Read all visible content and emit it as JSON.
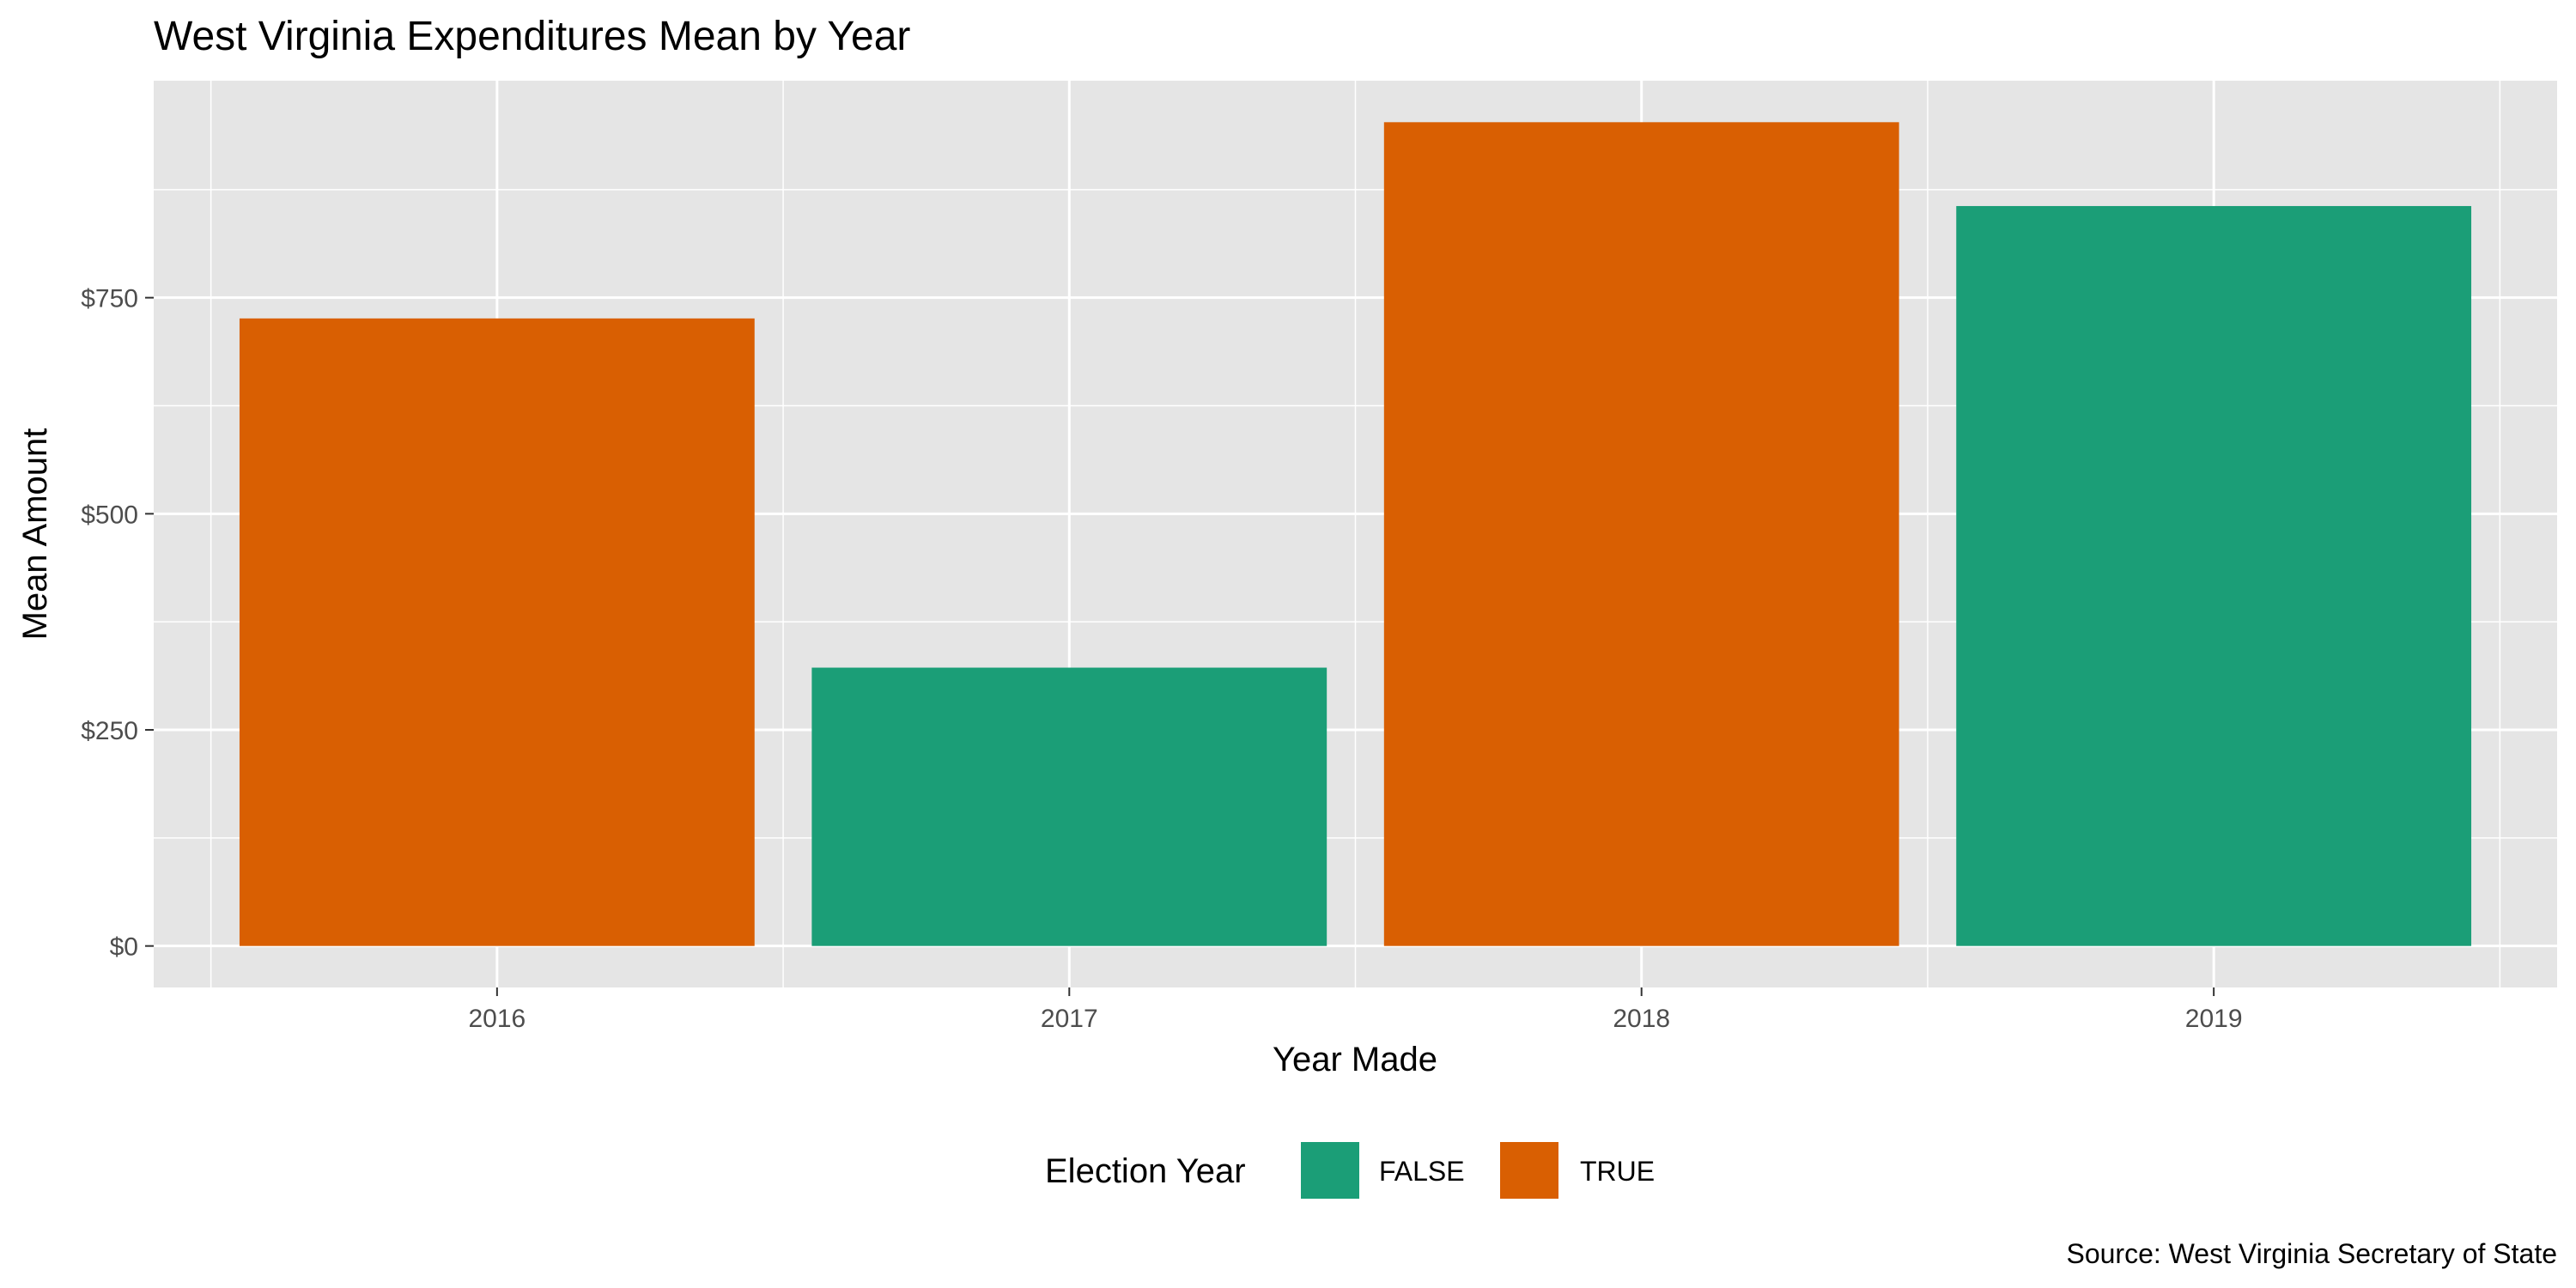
{
  "chart_data": {
    "type": "bar",
    "title": "West Virginia Expenditures Mean by Year",
    "xlabel": "Year Made",
    "ylabel": "Mean Amount",
    "categories": [
      "2016",
      "2017",
      "2018",
      "2019"
    ],
    "values": [
      726,
      322,
      953,
      856
    ],
    "election_year": [
      "TRUE",
      "FALSE",
      "TRUE",
      "FALSE"
    ],
    "yticks": [
      0,
      250,
      500,
      750
    ],
    "ytick_labels": [
      "$0",
      "$250",
      "$500",
      "$750"
    ],
    "ylim": [
      -48,
      1001
    ],
    "grid": true,
    "legend": {
      "title": "Election Year",
      "position": "bottom",
      "entries": [
        {
          "label": "FALSE",
          "color": "#1b9e77"
        },
        {
          "label": "TRUE",
          "color": "#d95f02"
        }
      ]
    },
    "caption": "Source: West Virginia Secretary of State",
    "colors": {
      "FALSE": "#1b9e77",
      "TRUE": "#d95f02",
      "panel": "#e5e5e5",
      "grid": "#ffffff"
    }
  }
}
